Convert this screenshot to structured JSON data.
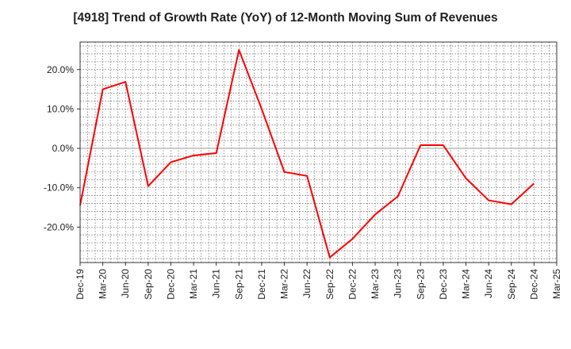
{
  "chart_data": {
    "type": "line",
    "title": "[4918]  Trend of Growth Rate (YoY) of 12-Month Moving Sum of Revenues",
    "xlabel": "",
    "ylabel": "",
    "x": [
      "Dec-19",
      "Mar-20",
      "Jun-20",
      "Sep-20",
      "Dec-20",
      "Mar-21",
      "Jun-21",
      "Sep-21",
      "Dec-21",
      "Mar-22",
      "Jun-22",
      "Sep-22",
      "Dec-22",
      "Mar-23",
      "Jun-23",
      "Sep-23",
      "Dec-23",
      "Mar-24",
      "Jun-24",
      "Sep-24",
      "Dec-24",
      "Mar-25"
    ],
    "series": [
      {
        "name": "",
        "color": "#ff0000",
        "values": [
          -14.5,
          15.0,
          16.9,
          -9.6,
          -3.5,
          -1.8,
          -1.2,
          25.0,
          10.0,
          -6.0,
          -7.0,
          -27.7,
          -23.0,
          -16.8,
          -12.2,
          0.8,
          0.8,
          -7.6,
          -13.2,
          -14.2,
          -8.9,
          null
        ]
      }
    ],
    "y_ticks": [
      "20.0%",
      "10.0%",
      "0.0%",
      "-10.0%",
      "-20.0%"
    ],
    "y_tick_values": [
      20,
      10,
      0,
      -10,
      -20
    ],
    "ylim": [
      -29,
      27
    ],
    "grid": true,
    "legend": "none"
  }
}
